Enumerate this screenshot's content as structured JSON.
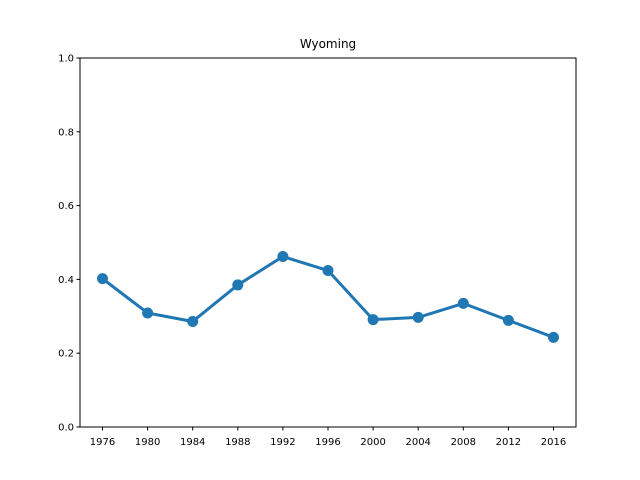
{
  "chart_data": {
    "type": "line",
    "title": "Wyoming",
    "xlabel": "",
    "ylabel": "",
    "categories": [
      "1976",
      "1980",
      "1984",
      "1988",
      "1992",
      "1996",
      "2000",
      "2004",
      "2008",
      "2012",
      "2016"
    ],
    "series": [
      {
        "values": [
          0.402,
          0.309,
          0.286,
          0.385,
          0.462,
          0.424,
          0.291,
          0.297,
          0.335,
          0.289,
          0.243
        ],
        "color": "#1f77b4"
      }
    ],
    "ylim": [
      0,
      1.0
    ],
    "yticks": [
      "0.0",
      "0.2",
      "0.4",
      "0.6",
      "0.8",
      "1.0"
    ],
    "grid": false,
    "legend": "none"
  }
}
